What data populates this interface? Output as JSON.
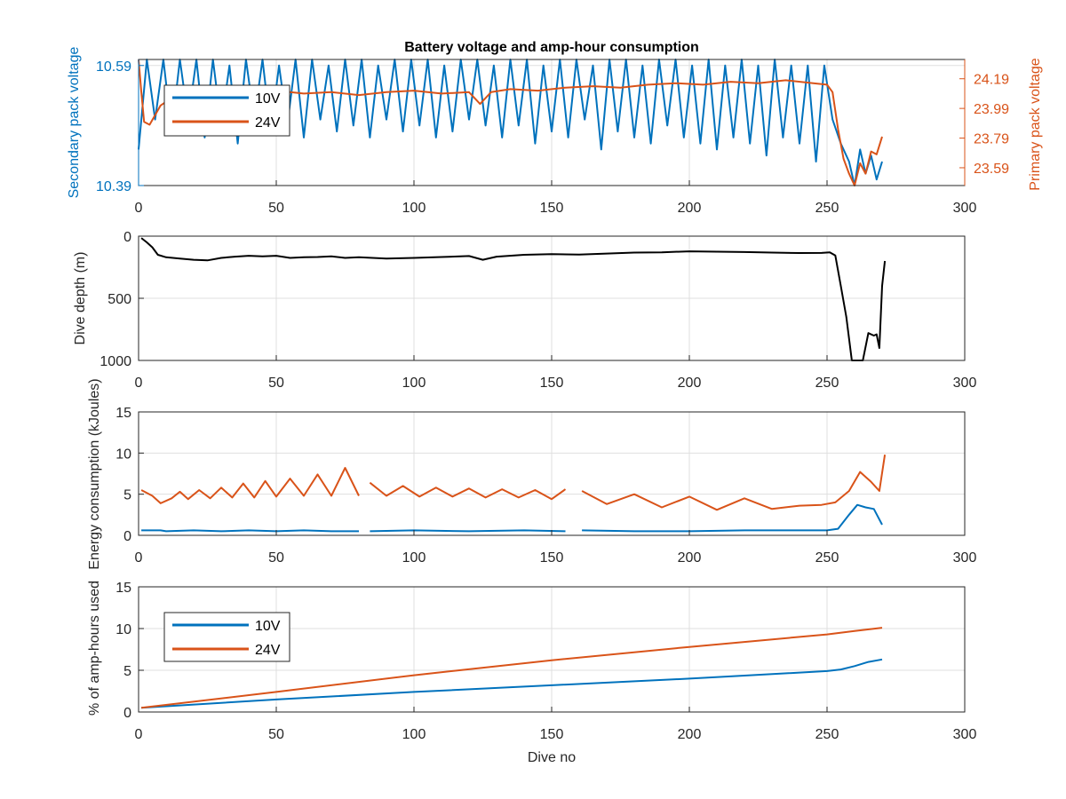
{
  "colors": {
    "c10": "#0072BD",
    "c24": "#D95319",
    "depth": "#000000",
    "axis": "#262626",
    "grid": "#DFDFDF"
  },
  "chart_data": [
    {
      "type": "line",
      "title": "Battery voltage and amp-hour consumption",
      "ylabel": "Secondary pack voltage",
      "ylabel_right": "Primary pack voltage",
      "xlim": [
        0,
        300
      ],
      "ylim": [
        10.39,
        10.6
      ],
      "ylim_right": [
        23.47,
        24.32
      ],
      "x_ticks": [
        "0",
        "50",
        "100",
        "150",
        "200",
        "250",
        "300"
      ],
      "y_ticks": [
        "10.39",
        "10.59"
      ],
      "y_ticks_right": [
        "23.59",
        "23.79",
        "23.99",
        "24.19"
      ],
      "grid": true,
      "legend": {
        "placement": "top-left",
        "entries": [
          "10V",
          "24V"
        ]
      },
      "series": [
        {
          "name": "10V",
          "axis": "left",
          "x": [
            0,
            3,
            6,
            9,
            12,
            15,
            18,
            21,
            24,
            27,
            30,
            33,
            36,
            39,
            42,
            45,
            48,
            51,
            54,
            57,
            60,
            63,
            66,
            69,
            72,
            75,
            78,
            81,
            84,
            87,
            90,
            93,
            96,
            99,
            102,
            105,
            108,
            111,
            114,
            117,
            120,
            123,
            126,
            129,
            132,
            135,
            138,
            141,
            144,
            147,
            150,
            153,
            156,
            159,
            162,
            165,
            168,
            171,
            174,
            177,
            180,
            183,
            186,
            189,
            192,
            195,
            198,
            201,
            204,
            207,
            210,
            213,
            216,
            219,
            222,
            225,
            228,
            231,
            234,
            237,
            240,
            243,
            246,
            249,
            252,
            255,
            258,
            260,
            262,
            264,
            266,
            268,
            270
          ],
          "y": [
            10.45,
            10.6,
            10.5,
            10.6,
            10.48,
            10.6,
            10.5,
            10.6,
            10.47,
            10.6,
            10.49,
            10.59,
            10.46,
            10.6,
            10.5,
            10.6,
            10.48,
            10.59,
            10.49,
            10.6,
            10.47,
            10.6,
            10.5,
            10.59,
            10.48,
            10.6,
            10.49,
            10.6,
            10.47,
            10.59,
            10.5,
            10.6,
            10.48,
            10.6,
            10.49,
            10.6,
            10.47,
            10.59,
            10.48,
            10.6,
            10.5,
            10.6,
            10.49,
            10.59,
            10.47,
            10.6,
            10.49,
            10.6,
            10.46,
            10.59,
            10.48,
            10.6,
            10.47,
            10.6,
            10.5,
            10.59,
            10.45,
            10.6,
            10.48,
            10.6,
            10.47,
            10.59,
            10.46,
            10.6,
            10.49,
            10.6,
            10.47,
            10.59,
            10.46,
            10.6,
            10.45,
            10.59,
            10.47,
            10.6,
            10.46,
            10.59,
            10.44,
            10.6,
            10.47,
            10.59,
            10.46,
            10.59,
            10.43,
            10.59,
            10.5,
            10.46,
            10.43,
            10.39,
            10.45,
            10.41,
            10.44,
            10.4,
            10.43
          ]
        },
        {
          "name": "24V",
          "axis": "right",
          "x": [
            0,
            1,
            2,
            4,
            8,
            12,
            16,
            20,
            26,
            32,
            40,
            50,
            60,
            70,
            80,
            90,
            100,
            110,
            120,
            124,
            128,
            135,
            145,
            155,
            165,
            175,
            185,
            195,
            205,
            215,
            225,
            235,
            245,
            250,
            252,
            254,
            256,
            258,
            260,
            262,
            264,
            266,
            268,
            270
          ],
          "y": [
            24.32,
            24.1,
            23.9,
            23.88,
            24.01,
            24.06,
            24.1,
            24.09,
            24.11,
            24.12,
            24.1,
            24.11,
            24.09,
            24.1,
            24.08,
            24.1,
            24.11,
            24.09,
            24.1,
            24.02,
            24.1,
            24.12,
            24.11,
            24.13,
            24.14,
            24.13,
            24.15,
            24.16,
            24.15,
            24.17,
            24.16,
            24.18,
            24.16,
            24.15,
            24.1,
            23.85,
            23.65,
            23.55,
            23.47,
            23.62,
            23.55,
            23.7,
            23.68,
            23.8
          ]
        }
      ]
    },
    {
      "type": "line",
      "ylabel": "Dive depth (m)",
      "xlim": [
        0,
        300
      ],
      "ylim": [
        0,
        1000
      ],
      "y_reversed": true,
      "x_ticks": [
        "0",
        "50",
        "100",
        "150",
        "200",
        "250",
        "300"
      ],
      "y_ticks": [
        "0",
        "500",
        "1000"
      ],
      "grid": true,
      "series": [
        {
          "x": [
            1,
            3,
            5,
            7,
            10,
            15,
            20,
            25,
            30,
            35,
            40,
            45,
            50,
            55,
            60,
            65,
            70,
            75,
            80,
            90,
            100,
            110,
            120,
            125,
            130,
            140,
            150,
            160,
            170,
            180,
            190,
            200,
            210,
            220,
            230,
            240,
            248,
            251,
            253,
            255,
            257,
            259,
            261,
            263,
            265,
            267,
            268,
            269,
            270,
            271
          ],
          "y": [
            15,
            50,
            90,
            150,
            170,
            180,
            190,
            195,
            175,
            165,
            158,
            162,
            158,
            175,
            170,
            168,
            162,
            175,
            170,
            180,
            175,
            168,
            160,
            190,
            165,
            150,
            145,
            148,
            140,
            132,
            130,
            122,
            125,
            128,
            132,
            136,
            135,
            130,
            155,
            400,
            650,
            1000,
            1000,
            1000,
            780,
            800,
            790,
            900,
            400,
            200
          ]
        }
      ]
    },
    {
      "type": "line",
      "ylabel": "Energy consumption (kJoules)",
      "xlim": [
        0,
        300
      ],
      "ylim": [
        0,
        15
      ],
      "x_ticks": [
        "0",
        "50",
        "100",
        "150",
        "200",
        "250",
        "300"
      ],
      "y_ticks": [
        "0",
        "5",
        "10",
        "15"
      ],
      "grid": true,
      "series": [
        {
          "name": "10V",
          "x": [
            1,
            8,
            10,
            20,
            30,
            40,
            50,
            60,
            70,
            80,
            null,
            84,
            100,
            120,
            140,
            155,
            null,
            161,
            180,
            200,
            220,
            240,
            250,
            254,
            258,
            261,
            264,
            267,
            270
          ],
          "y": [
            0.6,
            0.6,
            0.5,
            0.6,
            0.5,
            0.6,
            0.5,
            0.6,
            0.5,
            0.5,
            null,
            0.5,
            0.6,
            0.5,
            0.6,
            0.5,
            null,
            0.6,
            0.5,
            0.5,
            0.6,
            0.6,
            0.6,
            0.8,
            2.5,
            3.7,
            3.4,
            3.2,
            1.3
          ]
        },
        {
          "name": "24V",
          "x": [
            1,
            5,
            8,
            12,
            15,
            18,
            22,
            26,
            30,
            34,
            38,
            42,
            46,
            50,
            55,
            60,
            65,
            70,
            75,
            80,
            null,
            84,
            90,
            96,
            102,
            108,
            114,
            120,
            126,
            132,
            138,
            144,
            150,
            155,
            null,
            161,
            170,
            180,
            190,
            200,
            210,
            220,
            230,
            240,
            248,
            253,
            258,
            262,
            266,
            269,
            271
          ],
          "y": [
            5.5,
            4.8,
            3.9,
            4.5,
            5.3,
            4.4,
            5.5,
            4.5,
            5.8,
            4.6,
            6.3,
            4.6,
            6.6,
            4.7,
            6.9,
            4.8,
            7.4,
            4.8,
            8.2,
            4.8,
            null,
            6.4,
            4.8,
            6.0,
            4.7,
            5.8,
            4.7,
            5.7,
            4.6,
            5.6,
            4.6,
            5.5,
            4.4,
            5.6,
            null,
            5.4,
            3.8,
            5.0,
            3.4,
            4.7,
            3.1,
            4.5,
            3.2,
            3.6,
            3.7,
            4.0,
            5.4,
            7.7,
            6.5,
            5.4,
            9.8
          ]
        }
      ]
    },
    {
      "type": "line",
      "ylabel": "% of amp-hours used",
      "xlabel": "Dive no",
      "xlim": [
        0,
        300
      ],
      "ylim": [
        0,
        15
      ],
      "x_ticks": [
        "0",
        "50",
        "100",
        "150",
        "200",
        "250",
        "300"
      ],
      "y_ticks": [
        "0",
        "5",
        "10",
        "15"
      ],
      "grid": true,
      "legend": {
        "placement": "top-left",
        "entries": [
          "10V",
          "24V"
        ]
      },
      "series": [
        {
          "name": "10V",
          "x": [
            1,
            50,
            100,
            150,
            200,
            250,
            255,
            260,
            265,
            270
          ],
          "y": [
            0.5,
            1.5,
            2.4,
            3.2,
            4.0,
            4.9,
            5.1,
            5.5,
            6.0,
            6.3
          ]
        },
        {
          "name": "24V",
          "x": [
            1,
            50,
            100,
            150,
            200,
            250,
            260,
            270
          ],
          "y": [
            0.5,
            2.4,
            4.4,
            6.2,
            7.8,
            9.3,
            9.7,
            10.1
          ]
        }
      ]
    }
  ]
}
